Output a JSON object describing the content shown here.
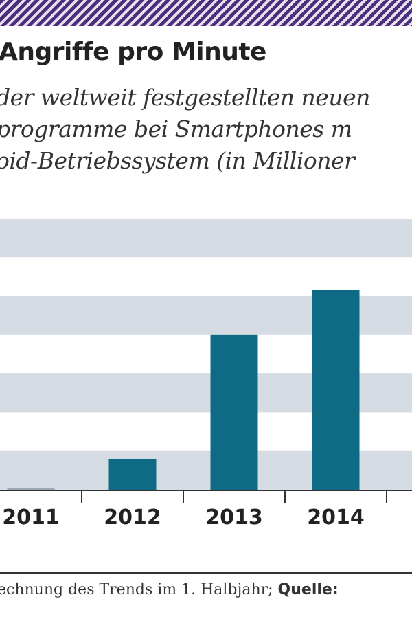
{
  "header": {
    "title": "Angriffe pro Minute",
    "subtitle_lines": [
      "der weltweit festgestellten neuen",
      "programme bei Smartphones m",
      "oid-Betriebssystem (in Millioner"
    ]
  },
  "footer": {
    "note": "echnung des Trends im 1. Halbjahr; ",
    "source_label": "Quelle:"
  },
  "colors": {
    "bar": "#0f6a85",
    "band": "#d5dce4",
    "stripe": "#4b2f7a"
  },
  "chart_data": {
    "type": "bar",
    "categories": [
      "2011",
      "2012",
      "2013",
      "2014"
    ],
    "values": [
      0.01,
      0.24,
      1.2,
      1.55
    ],
    "title": "Angriffe pro Minute",
    "xlabel": "",
    "ylabel": "",
    "ylim": [
      0,
      2.1
    ],
    "grid": "alternating horizontal bands",
    "legend": "none"
  }
}
